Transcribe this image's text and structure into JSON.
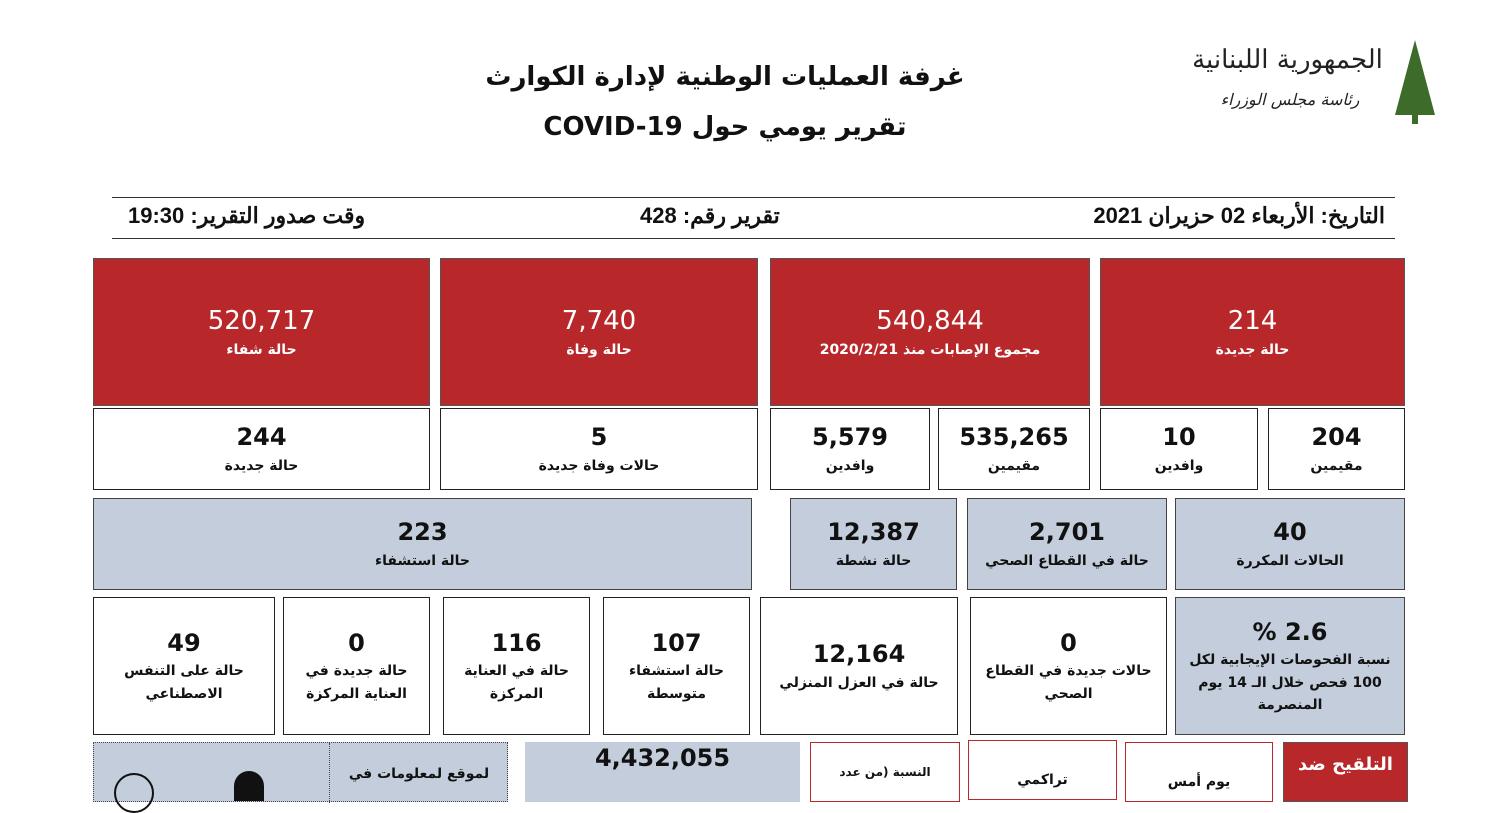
{
  "header": {
    "title": "غرفة العمليات الوطنية لإدارة الكوارث",
    "subtitle": "تقرير يومي حول COVID-19",
    "logo_text": "الجمهورية اللبنانية",
    "logo_subtext": "رئاسة مجلس الوزراء"
  },
  "info": {
    "date": "التاريخ: الأربعاء 02 حزيران 2021",
    "report_no": "تقرير رقم: 428",
    "time": "وقت صدور التقرير: 19:30"
  },
  "row1": [
    {
      "value": "214",
      "label": "حالة جديدة"
    },
    {
      "value": "540,844",
      "label": "مجموع الإصابات منذ 2020/2/21"
    },
    {
      "value": "7,740",
      "label": "حالة وفاة"
    },
    {
      "value": "520,717",
      "label": "حالة شفاء"
    }
  ],
  "row2": [
    {
      "value": "204",
      "label": "مقيمين"
    },
    {
      "value": "10",
      "label": "وافدين"
    },
    {
      "value": "535,265",
      "label": "مقيمين"
    },
    {
      "value": "5,579",
      "label": "وافدين"
    },
    {
      "value": "5",
      "label": "حالات وفاة جديدة"
    },
    {
      "value": "244",
      "label": "حالة جديدة"
    }
  ],
  "row3": [
    {
      "value": "40",
      "label": "الحالات المكررة"
    },
    {
      "value": "2,701",
      "label": "حالة في القطاع الصحي"
    },
    {
      "value": "12,387",
      "label": "حالة نشطة"
    },
    {
      "value": "223",
      "label": "حالة استشفاء"
    }
  ],
  "row4": [
    {
      "value": "2.6 %",
      "label": "نسبة الفحوصات الإيجابية لكل 100 فحص خلال الـ 14 يوم المنصرمة"
    },
    {
      "value": "0",
      "label": "حالات جديدة في القطاع الصحي"
    },
    {
      "value": "12,164",
      "label": "حالة في العزل المنزلي"
    },
    {
      "value": "107",
      "label": "حالة استشفاء متوسطة"
    },
    {
      "value": "116",
      "label": "حالة في العناية المركزة"
    },
    {
      "value": "0",
      "label": "حالة جديدة في العناية المركزة"
    },
    {
      "value": "49",
      "label": "حالة على التنفس الاصطناعي"
    }
  ],
  "row5": {
    "vaccine": "التلقيح ضد",
    "yesterday": "يوم أمس",
    "cumulative": "تراكمي",
    "ratio": "النسبة (من عدد",
    "tests": "4,432,055",
    "site": "لموقع لمعلومات في"
  },
  "colors": {
    "red": "#b8282b",
    "grey": "#c3cddb",
    "logo_green": "#3d6b2a"
  }
}
